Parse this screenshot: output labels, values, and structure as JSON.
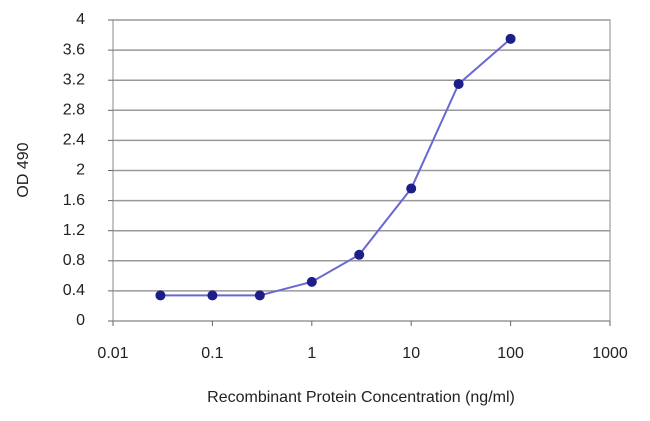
{
  "chart_data": {
    "type": "line",
    "x_label": "Recombinant Protein Concentration (ng/ml)",
    "y_label": "OD 490",
    "x": [
      0.03,
      0.1,
      0.3,
      1,
      3,
      10,
      30,
      100
    ],
    "values": [
      0.34,
      0.34,
      0.34,
      0.52,
      0.88,
      1.76,
      3.15,
      3.75
    ],
    "color": "#6868d0",
    "marker_color": "#1e1e88",
    "xscale": "log",
    "xlim": [
      0.01,
      1000
    ],
    "xticks": [
      0.01,
      0.1,
      1,
      10,
      100,
      1000
    ],
    "ylim": [
      0,
      4
    ],
    "yticks": [
      0,
      0.4,
      0.8,
      1.2,
      1.6,
      2,
      2.4,
      2.8,
      3.2,
      3.6,
      4
    ],
    "grid": true
  }
}
